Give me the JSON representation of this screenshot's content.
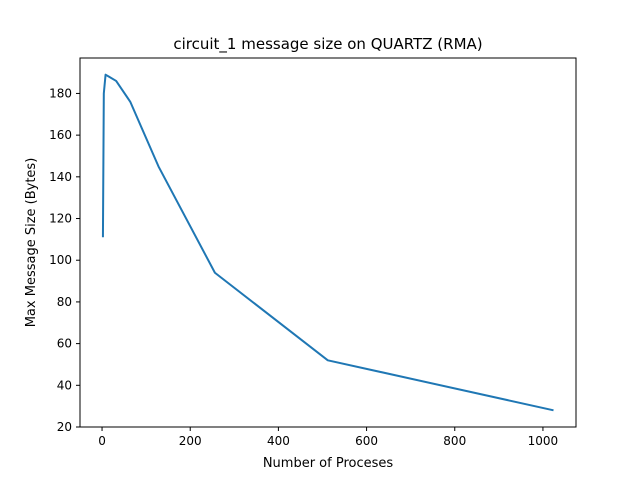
{
  "chart_data": {
    "type": "line",
    "title": "circuit_1 message size on QUARTZ (RMA)",
    "xlabel": "Number of Proceses",
    "ylabel": "Max Message Size (Bytes)",
    "xlim": [
      -50,
      1075
    ],
    "ylim": [
      20,
      197
    ],
    "xticks": [
      0,
      200,
      400,
      600,
      800,
      1000
    ],
    "yticks": [
      20,
      40,
      60,
      80,
      100,
      120,
      140,
      160,
      180
    ],
    "grid": false,
    "series": [
      {
        "color": "#1f77b4",
        "x": [
          2,
          4,
          8,
          16,
          32,
          64,
          128,
          256,
          512,
          1024
        ],
        "y": [
          111,
          180,
          189,
          188,
          186,
          176,
          145,
          94,
          52,
          28
        ]
      }
    ]
  }
}
